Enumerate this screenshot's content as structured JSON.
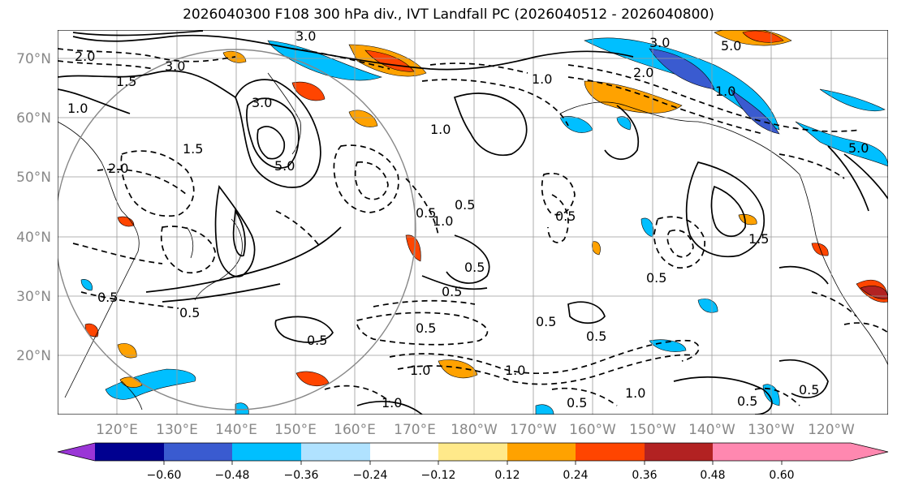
{
  "title": "2026040300 F108 300 hPa div., IVT Landfall PC (2026040512 - 2026040800)",
  "lat_labels": [
    "70°N",
    "60°N",
    "50°N",
    "40°N",
    "30°N",
    "20°N"
  ],
  "lon_labels": [
    "120°E",
    "130°E",
    "140°E",
    "150°E",
    "160°E",
    "170°E",
    "180°W",
    "170°W",
    "160°W",
    "150°W",
    "140°W",
    "130°W",
    "120°W"
  ],
  "colorbar": {
    "colors": [
      "#9a36d6",
      "#000090",
      "#3a5bd0",
      "#00bfff",
      "#b0e2ff",
      "#ffffff",
      "#ffe98a",
      "#ffa200",
      "#ff4500",
      "#b22222",
      "#ff88b0"
    ],
    "tick_labels": [
      "−0.60",
      "−0.48",
      "−0.36",
      "−0.24",
      "−0.12",
      "0.12",
      "0.24",
      "0.36",
      "0.48",
      "0.60"
    ]
  },
  "contour_labels": [
    {
      "text": "3.0"
    },
    {
      "text": "2.0"
    },
    {
      "text": "3.0"
    },
    {
      "text": "1.5"
    },
    {
      "text": "1.0"
    },
    {
      "text": "3.0"
    },
    {
      "text": "5.0"
    },
    {
      "text": "1.5"
    },
    {
      "text": "2.0"
    },
    {
      "text": "1.0"
    },
    {
      "text": "0.5"
    },
    {
      "text": "0.5"
    },
    {
      "text": "1.0"
    },
    {
      "text": "0.5"
    },
    {
      "text": "0.5"
    },
    {
      "text": "0.5"
    },
    {
      "text": "0.5"
    },
    {
      "text": "0.5"
    },
    {
      "text": "1.0"
    },
    {
      "text": "1.0"
    },
    {
      "text": "0.5"
    },
    {
      "text": "1.0"
    },
    {
      "text": "0.5"
    },
    {
      "text": "0.5"
    },
    {
      "text": "3.0"
    },
    {
      "text": "5.0"
    },
    {
      "text": "2.0"
    },
    {
      "text": "1.0"
    },
    {
      "text": "1.0"
    },
    {
      "text": "0.5"
    },
    {
      "text": "1.5"
    },
    {
      "text": "0.5"
    },
    {
      "text": "0.5"
    },
    {
      "text": "0.5"
    },
    {
      "text": "0.5"
    },
    {
      "text": "1.0"
    },
    {
      "text": "5.0"
    }
  ]
}
